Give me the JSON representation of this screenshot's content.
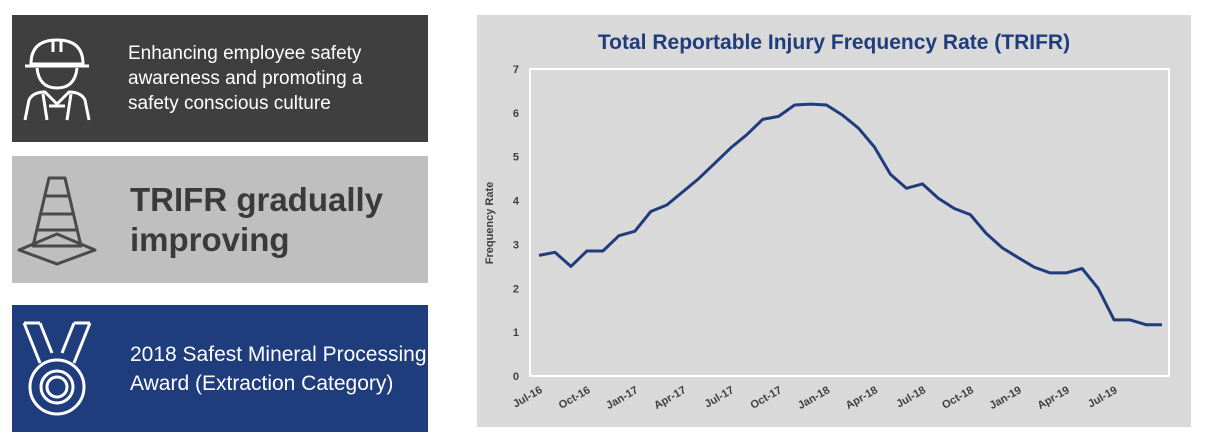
{
  "panels": {
    "safety_culture": {
      "text": "Enhancing employee safety awareness and promoting a safety conscious culture",
      "icon": "worker-hardhat-icon"
    },
    "trifr_status": {
      "text": "TRIFR gradually improving",
      "icon": "traffic-cone-icon"
    },
    "award": {
      "text": "2018 Safest Mineral Processing Award (Extraction Category)",
      "icon": "medal-icon"
    }
  },
  "colors": {
    "dark_panel": "#3f3f3f",
    "grey_panel": "#bfbfbf",
    "blue_panel": "#1f3c7d",
    "chart_bg": "#d9d9d9",
    "line": "#1f3c7d",
    "title": "#1f3c7d"
  },
  "chart_data": {
    "type": "line",
    "title": "Total Reportable Injury Frequency Rate (TRIFR)",
    "xlabel": "",
    "ylabel": "Frequency Rate",
    "ylim": [
      0,
      7
    ],
    "yticks": [
      0,
      1,
      2,
      3,
      4,
      5,
      6,
      7
    ],
    "xtick_labels": [
      "Jul-16",
      "Oct-16",
      "Jan-17",
      "Apr-17",
      "Jul-17",
      "Oct-17",
      "Jan-18",
      "Apr-18",
      "Jul-18",
      "Oct-18",
      "Jan-19",
      "Apr-19",
      "Jul-19"
    ],
    "x": [
      "Jul-16",
      "Aug-16",
      "Sep-16",
      "Oct-16",
      "Nov-16",
      "Dec-16",
      "Jan-17",
      "Feb-17",
      "Mar-17",
      "Apr-17",
      "May-17",
      "Jun-17",
      "Jul-17",
      "Aug-17",
      "Sep-17",
      "Oct-17",
      "Nov-17",
      "Dec-17",
      "Jan-18",
      "Feb-18",
      "Mar-18",
      "Apr-18",
      "May-18",
      "Jun-18",
      "Jul-18",
      "Aug-18",
      "Sep-18",
      "Oct-18",
      "Nov-18",
      "Dec-18",
      "Jan-19",
      "Feb-19",
      "Mar-19",
      "Apr-19",
      "May-19",
      "Jun-19",
      "Jul-19",
      "Aug-19",
      "Sep-19",
      "Oct-19"
    ],
    "series": [
      {
        "name": "TRIFR",
        "values": [
          2.75,
          2.82,
          2.5,
          2.85,
          2.85,
          3.2,
          3.3,
          3.75,
          3.9,
          4.2,
          4.5,
          4.85,
          5.2,
          5.5,
          5.85,
          5.92,
          6.18,
          6.2,
          6.18,
          5.95,
          5.65,
          5.22,
          4.6,
          4.28,
          4.38,
          4.05,
          3.82,
          3.68,
          3.25,
          2.92,
          2.7,
          2.48,
          2.35,
          2.35,
          2.45,
          2.0,
          1.28,
          1.28,
          1.17,
          1.17
        ]
      }
    ]
  }
}
